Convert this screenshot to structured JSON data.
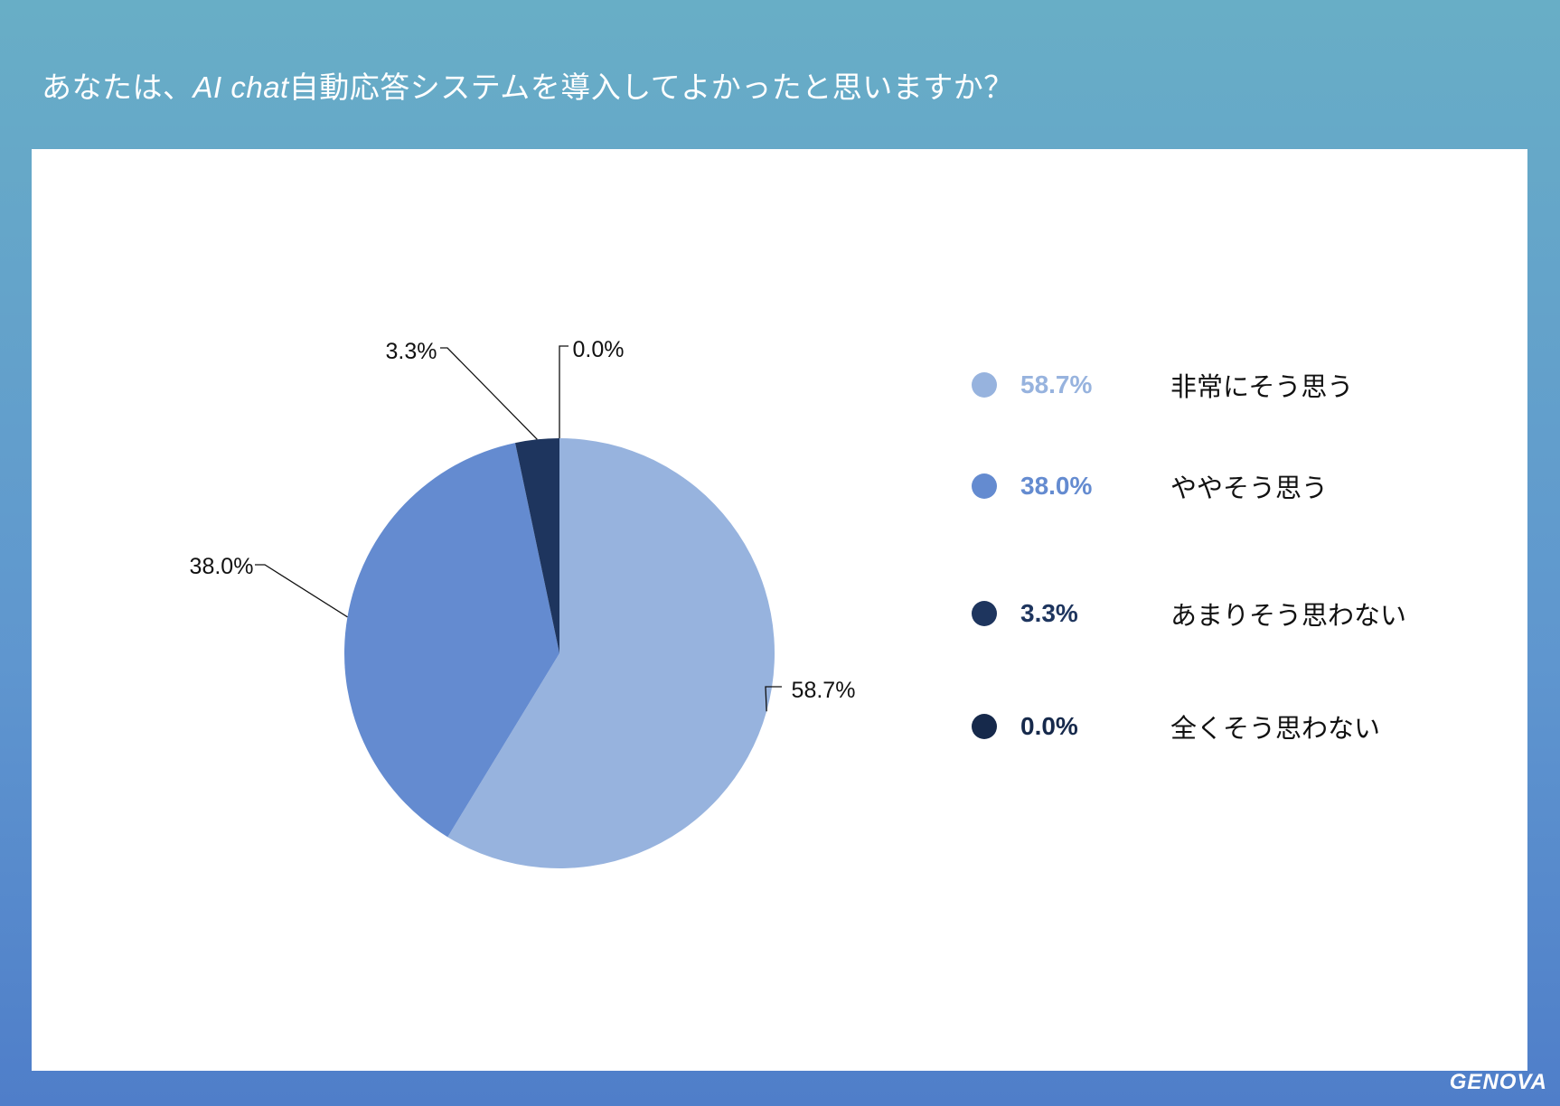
{
  "title_prefix": "あなたは、",
  "title_ai": "AI chat",
  "title_suffix": "自動応答システムを導入してよかったと思いますか？",
  "brand": "GENOVA",
  "chart_data": {
    "type": "pie",
    "categories": [
      "非常にそう思う",
      "ややそう思う",
      "あまりそう思わない",
      "全くそう思わない"
    ],
    "values": [
      58.7,
      38.0,
      3.3,
      0.0
    ],
    "labels": [
      "58.7%",
      "38.0%",
      "3.3%",
      "0.0%"
    ],
    "colors": [
      "#97b3de",
      "#648bd0",
      "#1e355e",
      "#16294b"
    ],
    "legend_position": "right"
  }
}
